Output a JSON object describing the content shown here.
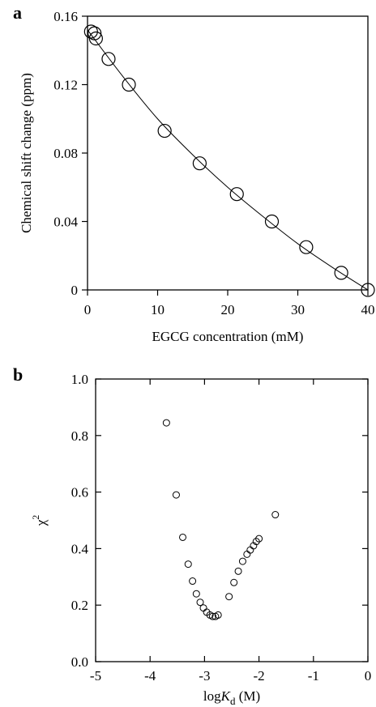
{
  "chart_data": [
    {
      "panel_label": "a",
      "type": "scatter",
      "xlabel": "EGCG concentration (mM)",
      "ylabel": "Chemical shift change (ppm)",
      "xlim": [
        0,
        40
      ],
      "ylim": [
        0,
        0.16
      ],
      "xticks": [
        "0",
        "10",
        "20",
        "30",
        "40"
      ],
      "yticks": [
        "0",
        "0.04",
        "0.08",
        "0.12",
        "0.16"
      ],
      "grid": false,
      "series": [
        {
          "marker": "open-circle",
          "x": [
            0.5,
            1.0,
            1.2,
            3.0,
            5.9,
            11.0,
            16.0,
            21.3,
            26.3,
            31.2,
            36.2,
            40.0
          ],
          "y": [
            0.151,
            0.15,
            0.147,
            0.135,
            0.12,
            0.093,
            0.074,
            0.056,
            0.04,
            0.025,
            0.01,
            0.0
          ]
        },
        {
          "style": "line",
          "x": [
            0,
            5,
            10,
            15,
            20,
            25,
            30,
            35,
            40
          ],
          "y": [
            0.152,
            0.125,
            0.1,
            0.079,
            0.06,
            0.043,
            0.027,
            0.013,
            0.0
          ]
        }
      ]
    },
    {
      "panel_label": "b",
      "type": "scatter",
      "xlabel": "logK",
      "xlabel_subscript": "d",
      "xlabel_unit": " (M)",
      "ylabel": "χ",
      "ylabel_superscript": "2",
      "xlim": [
        -5,
        0
      ],
      "ylim": [
        0,
        1.0
      ],
      "xticks": [
        "-5",
        "-4",
        "-3",
        "-2",
        "-1",
        "0"
      ],
      "yticks": [
        "0.0",
        "0.2",
        "0.4",
        "0.6",
        "0.8",
        "1.0"
      ],
      "grid": false,
      "series": [
        {
          "marker": "open-circle",
          "x": [
            -3.7,
            -3.52,
            -3.4,
            -3.3,
            -3.22,
            -3.15,
            -3.08,
            -3.02,
            -2.96,
            -2.9,
            -2.85,
            -2.8,
            -2.75,
            -2.55,
            -2.46,
            -2.38,
            -2.3,
            -2.22,
            -2.16,
            -2.1,
            -2.05,
            -2.0,
            -1.7
          ],
          "y": [
            0.845,
            0.59,
            0.44,
            0.345,
            0.285,
            0.24,
            0.21,
            0.19,
            0.175,
            0.165,
            0.16,
            0.16,
            0.165,
            0.23,
            0.28,
            0.32,
            0.355,
            0.38,
            0.395,
            0.41,
            0.425,
            0.435,
            0.52
          ]
        }
      ]
    }
  ]
}
